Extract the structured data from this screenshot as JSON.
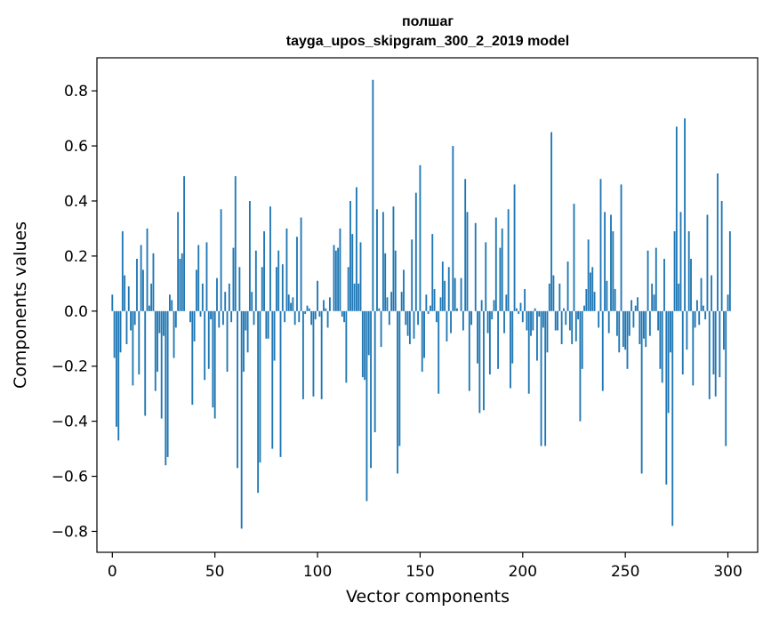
{
  "chart_data": {
    "type": "bar",
    "title_line1": "полшаг",
    "title_line2": "tayga_upos_skipgram_300_2_2019 model",
    "xlabel": "Vector components",
    "ylabel": "Components values",
    "xlim": [
      -7.5,
      314.5
    ],
    "ylim": [
      -0.876,
      0.92
    ],
    "xticks": [
      0,
      50,
      100,
      150,
      200,
      250,
      300
    ],
    "xtick_labels": [
      "0",
      "50",
      "100",
      "150",
      "200",
      "250",
      "300"
    ],
    "yticks": [
      -0.8,
      -0.6,
      -0.4,
      -0.2,
      0.0,
      0.2,
      0.4,
      0.6,
      0.8
    ],
    "ytick_labels": [
      "−0.8",
      "−0.6",
      "−0.4",
      "−0.2",
      "0.0",
      "0.2",
      "0.4",
      "0.6",
      "0.8"
    ],
    "bar_color": "#1f77b4",
    "values": [
      0.06,
      -0.17,
      -0.42,
      -0.47,
      -0.15,
      0.29,
      0.13,
      -0.12,
      0.09,
      -0.07,
      -0.27,
      -0.05,
      0.19,
      -0.23,
      0.24,
      0.15,
      -0.38,
      0.3,
      0.02,
      0.1,
      0.21,
      -0.29,
      -0.22,
      -0.08,
      -0.39,
      -0.09,
      -0.56,
      -0.53,
      0.06,
      0.04,
      -0.17,
      -0.06,
      0.36,
      0.19,
      0.21,
      0.49,
      0.0,
      0.0,
      -0.04,
      -0.34,
      -0.11,
      0.15,
      0.24,
      -0.02,
      0.1,
      -0.25,
      0.25,
      -0.21,
      -0.03,
      -0.35,
      -0.39,
      0.12,
      -0.06,
      0.37,
      -0.05,
      0.07,
      -0.22,
      0.1,
      -0.04,
      0.23,
      0.49,
      -0.57,
      0.16,
      -0.79,
      -0.22,
      -0.07,
      -0.15,
      0.4,
      0.07,
      -0.05,
      0.22,
      -0.66,
      -0.55,
      0.16,
      0.29,
      -0.1,
      -0.1,
      0.38,
      -0.5,
      -0.18,
      0.16,
      0.22,
      -0.53,
      0.17,
      -0.04,
      0.3,
      0.06,
      0.03,
      0.05,
      -0.05,
      0.27,
      -0.04,
      0.34,
      -0.32,
      -0.01,
      0.02,
      0.01,
      -0.05,
      -0.31,
      -0.03,
      0.11,
      -0.02,
      -0.32,
      0.04,
      0.01,
      -0.06,
      0.05,
      0.0,
      0.24,
      0.22,
      0.23,
      0.3,
      -0.02,
      -0.04,
      -0.26,
      0.16,
      0.4,
      0.28,
      0.1,
      0.45,
      0.1,
      0.25,
      -0.24,
      -0.25,
      -0.69,
      -0.16,
      -0.57,
      0.84,
      -0.44,
      0.37,
      0.01,
      -0.13,
      0.36,
      0.21,
      0.05,
      -0.05,
      0.07,
      0.38,
      0.22,
      -0.59,
      -0.49,
      0.07,
      0.15,
      -0.05,
      -0.09,
      -0.12,
      0.26,
      -0.1,
      0.43,
      -0.05,
      0.53,
      -0.22,
      -0.17,
      0.06,
      -0.01,
      0.02,
      0.28,
      0.08,
      -0.04,
      -0.3,
      0.05,
      0.18,
      0.11,
      -0.11,
      0.16,
      -0.08,
      0.6,
      0.12,
      0.01,
      0.0,
      0.12,
      -0.07,
      0.48,
      0.36,
      -0.29,
      -0.05,
      0.0,
      0.32,
      -0.19,
      -0.37,
      0.04,
      -0.36,
      0.25,
      -0.08,
      -0.23,
      -0.03,
      0.04,
      0.34,
      -0.21,
      0.23,
      0.3,
      -0.08,
      0.06,
      0.37,
      -0.28,
      -0.19,
      0.46,
      0.01,
      -0.01,
      0.03,
      -0.04,
      0.08,
      -0.07,
      -0.3,
      -0.09,
      -0.07,
      0.01,
      -0.18,
      -0.02,
      -0.49,
      -0.06,
      -0.49,
      -0.15,
      0.1,
      0.65,
      0.13,
      -0.07,
      -0.07,
      0.1,
      -0.12,
      0.01,
      -0.05,
      0.18,
      -0.07,
      -0.12,
      0.39,
      -0.11,
      -0.03,
      -0.4,
      -0.21,
      0.02,
      0.08,
      0.26,
      0.14,
      0.16,
      0.07,
      0.0,
      -0.06,
      0.48,
      -0.29,
      0.36,
      0.11,
      -0.08,
      0.35,
      0.29,
      0.08,
      -0.09,
      -0.15,
      0.46,
      -0.13,
      -0.14,
      -0.21,
      -0.09,
      0.04,
      -0.06,
      0.02,
      0.05,
      -0.12,
      -0.59,
      -0.1,
      -0.13,
      0.22,
      -0.09,
      0.1,
      0.06,
      0.23,
      -0.07,
      -0.21,
      -0.26,
      0.19,
      -0.63,
      -0.37,
      -0.15,
      -0.78,
      0.29,
      0.67,
      0.1,
      0.36,
      -0.23,
      0.7,
      -0.14,
      0.29,
      0.19,
      -0.27,
      -0.06,
      0.04,
      -0.05,
      0.12,
      0.02,
      -0.03,
      0.35,
      -0.32,
      0.13,
      -0.23,
      -0.31,
      0.5,
      -0.24,
      0.4,
      -0.14,
      -0.49,
      0.06,
      0.29
    ]
  }
}
